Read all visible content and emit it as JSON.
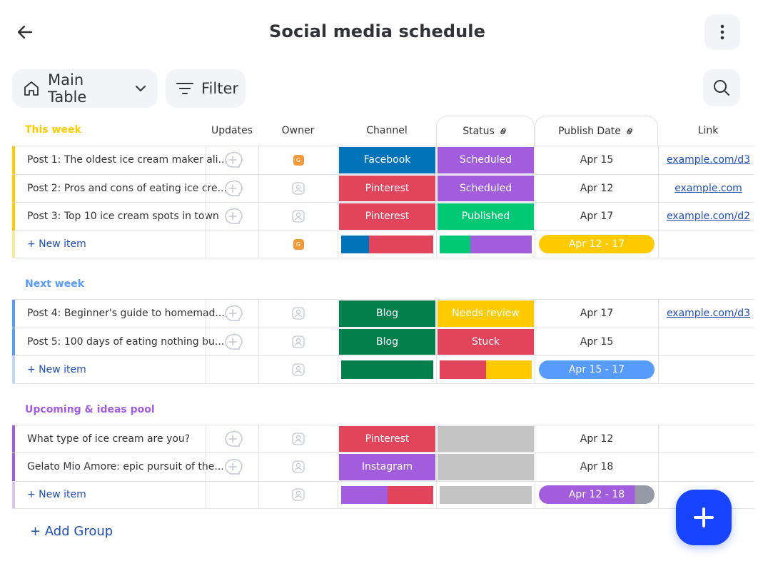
{
  "header": {
    "title": "Social media schedule",
    "back_icon": "arrow-left-icon",
    "more_icon": "more-vertical-icon"
  },
  "toolbar": {
    "view_label": "Main Table",
    "filter_label": "Filter",
    "search_icon": "search-icon"
  },
  "columns": {
    "updates": "Updates",
    "owner": "Owner",
    "channel": "Channel",
    "status": "Status",
    "publish_date": "Publish Date",
    "link": "Link"
  },
  "groups": [
    {
      "title": "This week",
      "color": "#ffcb00",
      "rows": [
        {
          "name": "Post 1: The oldest ice cream maker ali...",
          "owner": "G",
          "channel": "Facebook",
          "channel_color": "#0073ba",
          "status": "Scheduled",
          "status_color": "#a25ddc",
          "date": "Apr 15",
          "link": "example.com/d3"
        },
        {
          "name": "Post 2: Pros and cons of eating ice cre...",
          "owner": "",
          "channel": "Pinterest",
          "channel_color": "#e2445c",
          "status": "Scheduled",
          "status_color": "#a25ddc",
          "date": "Apr 12",
          "link": "example.com"
        },
        {
          "name": "Post 3: Top 10 ice cream spots in town",
          "owner": "",
          "channel": "Pinterest",
          "channel_color": "#e2445c",
          "status": "Published",
          "status_color": "#00c875",
          "date": "Apr 17",
          "link": "example.com/d2"
        }
      ],
      "new_item": "+ New item",
      "summary_owner": "G",
      "summary_date": "Apr 12 - 17",
      "summary_date_color": "#ffcb00"
    },
    {
      "title": "Next week",
      "color": "#579bfc",
      "rows": [
        {
          "name": "Post 4: Beginner's guide to homemad...",
          "owner": "",
          "channel": "Blog",
          "channel_color": "#037f4c",
          "status": "Needs review",
          "status_color": "#ffcb00",
          "date": "Apr 17",
          "link": "example.com/d3"
        },
        {
          "name": "Post 5: 100 days of eating nothing bu...",
          "owner": "",
          "channel": "Blog",
          "channel_color": "#037f4c",
          "status": "Stuck",
          "status_color": "#e2445c",
          "date": "Apr 15",
          "link": ""
        }
      ],
      "new_item": "+ New item",
      "summary_owner": "",
      "summary_date": "Apr 15 - 17",
      "summary_date_color": "#579bfc"
    },
    {
      "title": "Upcoming & ideas pool",
      "color": "#a25ddc",
      "rows": [
        {
          "name": "What type of ice cream are you?",
          "owner": "",
          "channel": "Pinterest",
          "channel_color": "#e2445c",
          "status": "",
          "status_color": "#c4c4c4",
          "date": "Apr 12",
          "link": ""
        },
        {
          "name": "Gelato Mio Amore: epic pursuit of the...",
          "owner": "",
          "channel": "Instagram",
          "channel_color": "#a25ddc",
          "status": "",
          "status_color": "#c4c4c4",
          "date": "Apr 18",
          "link": ""
        }
      ],
      "new_item": "+ New item",
      "summary_owner": "",
      "summary_date": "Apr 12 - 18",
      "summary_date_color": "#a25ddc"
    }
  ],
  "add_group_label": "+ Add Group",
  "fab_icon": "plus-icon"
}
